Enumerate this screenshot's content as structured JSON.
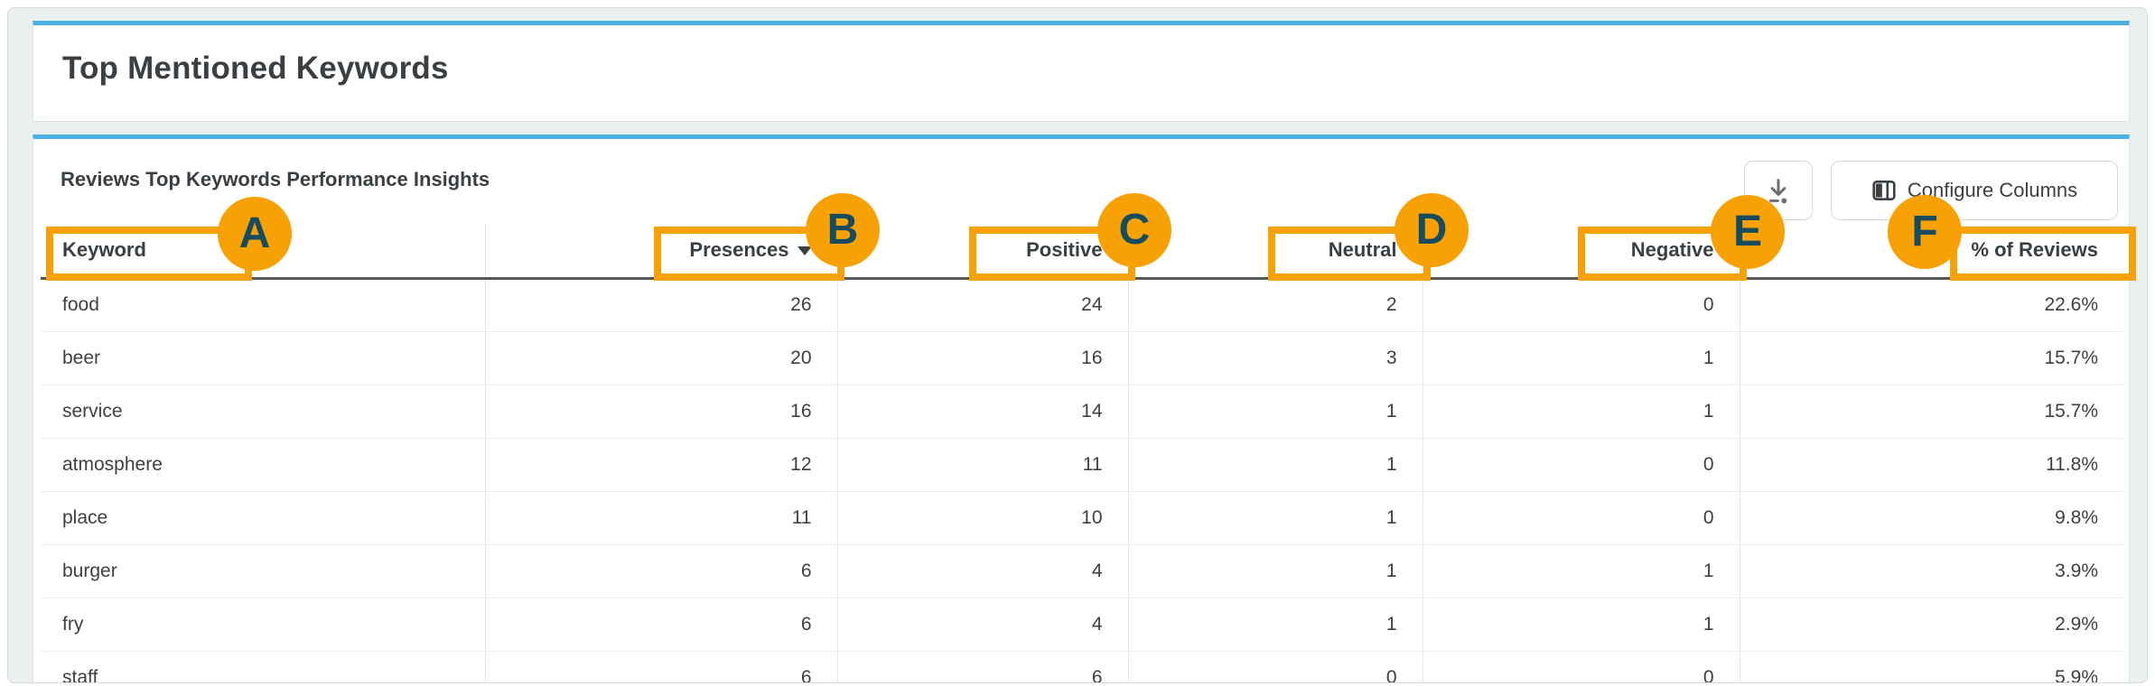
{
  "header_card": {
    "title": "Top Mentioned Keywords"
  },
  "panel": {
    "subtitle": "Reviews Top Keywords Performance Insights",
    "toolbar": {
      "download_icon": "download-icon",
      "configure_icon": "columns-icon",
      "configure_label": "Configure Columns"
    }
  },
  "table": {
    "sort": {
      "column": "presences",
      "direction": "desc"
    },
    "columns": [
      {
        "key": "keyword",
        "label": "Keyword",
        "align": "left"
      },
      {
        "key": "presences",
        "label": "Presences",
        "align": "right"
      },
      {
        "key": "positive",
        "label": "Positive",
        "align": "right"
      },
      {
        "key": "neutral",
        "label": "Neutral",
        "align": "right"
      },
      {
        "key": "negative",
        "label": "Negative",
        "align": "right"
      },
      {
        "key": "pct_reviews",
        "label": "% of Reviews",
        "align": "right"
      }
    ],
    "rows": [
      {
        "keyword": "food",
        "presences": "26",
        "positive": "24",
        "neutral": "2",
        "negative": "0",
        "pct_reviews": "22.6%"
      },
      {
        "keyword": "beer",
        "presences": "20",
        "positive": "16",
        "neutral": "3",
        "negative": "1",
        "pct_reviews": "15.7%"
      },
      {
        "keyword": "service",
        "presences": "16",
        "positive": "14",
        "neutral": "1",
        "negative": "1",
        "pct_reviews": "15.7%"
      },
      {
        "keyword": "atmosphere",
        "presences": "12",
        "positive": "11",
        "neutral": "1",
        "negative": "0",
        "pct_reviews": "11.8%"
      },
      {
        "keyword": "place",
        "presences": "11",
        "positive": "10",
        "neutral": "1",
        "negative": "0",
        "pct_reviews": "9.8%"
      },
      {
        "keyword": "burger",
        "presences": "6",
        "positive": "4",
        "neutral": "1",
        "negative": "1",
        "pct_reviews": "3.9%"
      },
      {
        "keyword": "fry",
        "presences": "6",
        "positive": "4",
        "neutral": "1",
        "negative": "1",
        "pct_reviews": "2.9%"
      },
      {
        "keyword": "staff",
        "presences": "6",
        "positive": "6",
        "neutral": "0",
        "negative": "0",
        "pct_reviews": "5.9%"
      }
    ]
  },
  "annotations": {
    "letters": [
      "A",
      "B",
      "C",
      "D",
      "E",
      "F"
    ],
    "marker_color": "#F7A104",
    "letter_color": "#174B5E"
  },
  "colors": {
    "accent_blue": "#4BB1E3",
    "accent_orange": "#F7A104",
    "text_dark": "#3C4043"
  }
}
